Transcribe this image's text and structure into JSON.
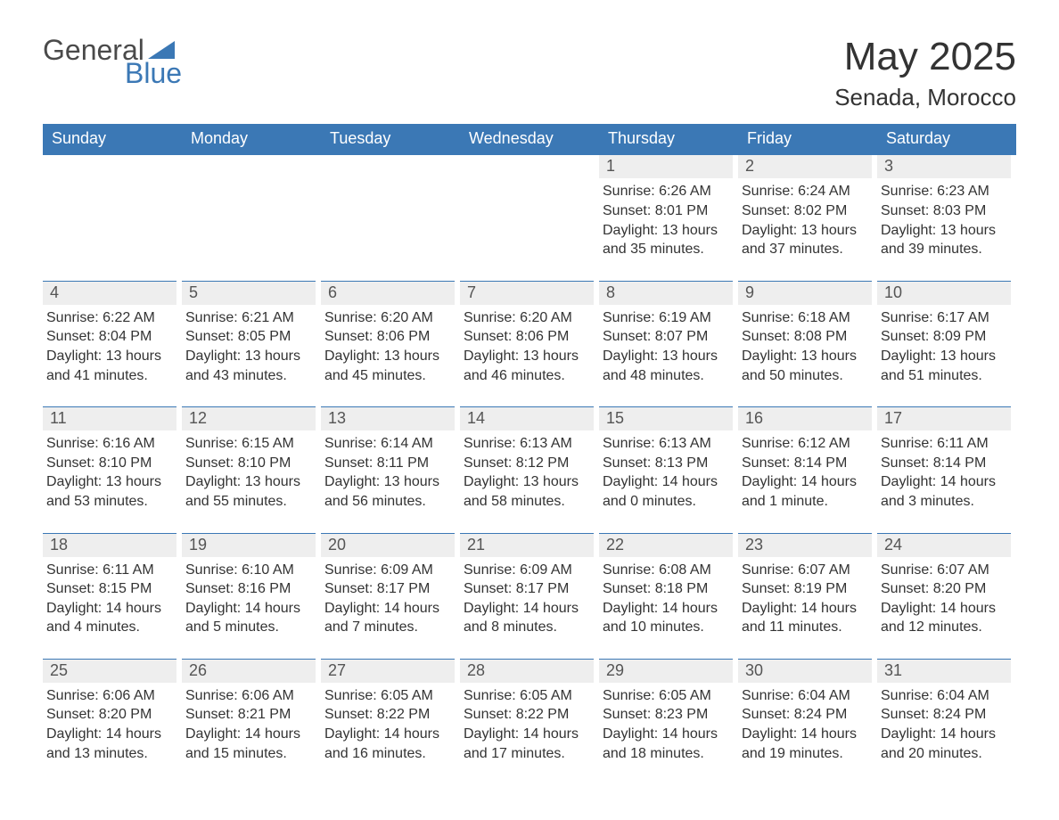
{
  "logo": {
    "word1": "General",
    "word2": "Blue",
    "triangle_color": "#3b78b5"
  },
  "header": {
    "month_title": "May 2025",
    "location": "Senada, Morocco"
  },
  "colors": {
    "header_bg": "#3b78b5",
    "header_text": "#ffffff",
    "daynum_bg": "#eeeeee",
    "daynum_text": "#555555",
    "body_text": "#333333",
    "rule": "#3b78b5",
    "page_bg": "#ffffff"
  },
  "typography": {
    "month_title_fontsize": 44,
    "location_fontsize": 26,
    "weekday_fontsize": 18,
    "daynum_fontsize": 18,
    "body_fontsize": 16,
    "font_family": "Segoe UI"
  },
  "layout": {
    "columns": 7,
    "rows": 5,
    "first_day_column_index": 4
  },
  "weekdays": [
    "Sunday",
    "Monday",
    "Tuesday",
    "Wednesday",
    "Thursday",
    "Friday",
    "Saturday"
  ],
  "days": [
    {
      "n": 1,
      "sunrise": "6:26 AM",
      "sunset": "8:01 PM",
      "daylight": "13 hours and 35 minutes."
    },
    {
      "n": 2,
      "sunrise": "6:24 AM",
      "sunset": "8:02 PM",
      "daylight": "13 hours and 37 minutes."
    },
    {
      "n": 3,
      "sunrise": "6:23 AM",
      "sunset": "8:03 PM",
      "daylight": "13 hours and 39 minutes."
    },
    {
      "n": 4,
      "sunrise": "6:22 AM",
      "sunset": "8:04 PM",
      "daylight": "13 hours and 41 minutes."
    },
    {
      "n": 5,
      "sunrise": "6:21 AM",
      "sunset": "8:05 PM",
      "daylight": "13 hours and 43 minutes."
    },
    {
      "n": 6,
      "sunrise": "6:20 AM",
      "sunset": "8:06 PM",
      "daylight": "13 hours and 45 minutes."
    },
    {
      "n": 7,
      "sunrise": "6:20 AM",
      "sunset": "8:06 PM",
      "daylight": "13 hours and 46 minutes."
    },
    {
      "n": 8,
      "sunrise": "6:19 AM",
      "sunset": "8:07 PM",
      "daylight": "13 hours and 48 minutes."
    },
    {
      "n": 9,
      "sunrise": "6:18 AM",
      "sunset": "8:08 PM",
      "daylight": "13 hours and 50 minutes."
    },
    {
      "n": 10,
      "sunrise": "6:17 AM",
      "sunset": "8:09 PM",
      "daylight": "13 hours and 51 minutes."
    },
    {
      "n": 11,
      "sunrise": "6:16 AM",
      "sunset": "8:10 PM",
      "daylight": "13 hours and 53 minutes."
    },
    {
      "n": 12,
      "sunrise": "6:15 AM",
      "sunset": "8:10 PM",
      "daylight": "13 hours and 55 minutes."
    },
    {
      "n": 13,
      "sunrise": "6:14 AM",
      "sunset": "8:11 PM",
      "daylight": "13 hours and 56 minutes."
    },
    {
      "n": 14,
      "sunrise": "6:13 AM",
      "sunset": "8:12 PM",
      "daylight": "13 hours and 58 minutes."
    },
    {
      "n": 15,
      "sunrise": "6:13 AM",
      "sunset": "8:13 PM",
      "daylight": "14 hours and 0 minutes."
    },
    {
      "n": 16,
      "sunrise": "6:12 AM",
      "sunset": "8:14 PM",
      "daylight": "14 hours and 1 minute."
    },
    {
      "n": 17,
      "sunrise": "6:11 AM",
      "sunset": "8:14 PM",
      "daylight": "14 hours and 3 minutes."
    },
    {
      "n": 18,
      "sunrise": "6:11 AM",
      "sunset": "8:15 PM",
      "daylight": "14 hours and 4 minutes."
    },
    {
      "n": 19,
      "sunrise": "6:10 AM",
      "sunset": "8:16 PM",
      "daylight": "14 hours and 5 minutes."
    },
    {
      "n": 20,
      "sunrise": "6:09 AM",
      "sunset": "8:17 PM",
      "daylight": "14 hours and 7 minutes."
    },
    {
      "n": 21,
      "sunrise": "6:09 AM",
      "sunset": "8:17 PM",
      "daylight": "14 hours and 8 minutes."
    },
    {
      "n": 22,
      "sunrise": "6:08 AM",
      "sunset": "8:18 PM",
      "daylight": "14 hours and 10 minutes."
    },
    {
      "n": 23,
      "sunrise": "6:07 AM",
      "sunset": "8:19 PM",
      "daylight": "14 hours and 11 minutes."
    },
    {
      "n": 24,
      "sunrise": "6:07 AM",
      "sunset": "8:20 PM",
      "daylight": "14 hours and 12 minutes."
    },
    {
      "n": 25,
      "sunrise": "6:06 AM",
      "sunset": "8:20 PM",
      "daylight": "14 hours and 13 minutes."
    },
    {
      "n": 26,
      "sunrise": "6:06 AM",
      "sunset": "8:21 PM",
      "daylight": "14 hours and 15 minutes."
    },
    {
      "n": 27,
      "sunrise": "6:05 AM",
      "sunset": "8:22 PM",
      "daylight": "14 hours and 16 minutes."
    },
    {
      "n": 28,
      "sunrise": "6:05 AM",
      "sunset": "8:22 PM",
      "daylight": "14 hours and 17 minutes."
    },
    {
      "n": 29,
      "sunrise": "6:05 AM",
      "sunset": "8:23 PM",
      "daylight": "14 hours and 18 minutes."
    },
    {
      "n": 30,
      "sunrise": "6:04 AM",
      "sunset": "8:24 PM",
      "daylight": "14 hours and 19 minutes."
    },
    {
      "n": 31,
      "sunrise": "6:04 AM",
      "sunset": "8:24 PM",
      "daylight": "14 hours and 20 minutes."
    }
  ],
  "labels": {
    "sunrise": "Sunrise:",
    "sunset": "Sunset:",
    "daylight": "Daylight:"
  }
}
